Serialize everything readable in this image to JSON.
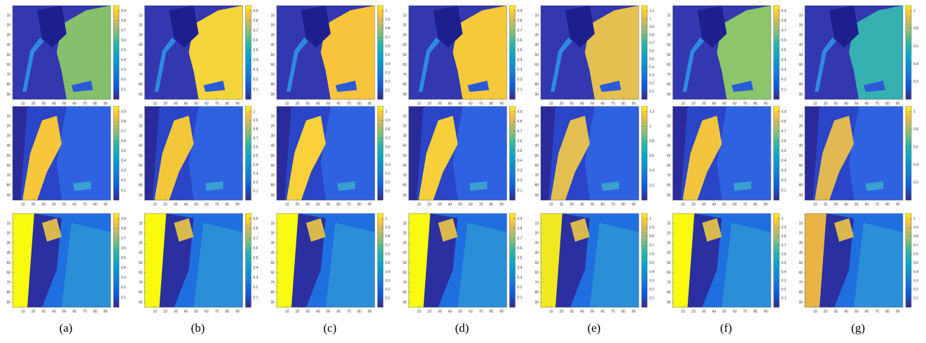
{
  "panel_labels": [
    "(a)",
    "(b)",
    "(c)",
    "(d)",
    "(e)",
    "(f)",
    "(g)"
  ],
  "axis_ticks": {
    "x": [
      10,
      20,
      30,
      40,
      50,
      60,
      70,
      80,
      90
    ],
    "y": [
      10,
      20,
      30,
      40,
      50,
      60,
      70,
      80,
      90
    ]
  },
  "colorbar_ticks": [
    [
      [
        0.1,
        0.2,
        0.3,
        0.4,
        0.5,
        0.6,
        0.7,
        0.8,
        0.9
      ],
      [
        0.1,
        0.2,
        0.3,
        0.4,
        0.5,
        0.6,
        0.7,
        0.8,
        0.9
      ],
      [
        0.1,
        0.2,
        0.3,
        0.4,
        0.5,
        0.6,
        0.7,
        0.8,
        0.9,
        1
      ],
      [
        0.1,
        0.2,
        0.3,
        0.4,
        0.5,
        0.6,
        0.7,
        0.8,
        0.9
      ],
      [
        0.1,
        0.2,
        0.3,
        0.4,
        0.5,
        0.6,
        0.7,
        0.8,
        0.9,
        1,
        1.1
      ],
      [
        0.1,
        0.2,
        0.3,
        0.4,
        0.5,
        0.6,
        0.7,
        0.8,
        0.9
      ],
      [
        0.2,
        0.4,
        0.6,
        0.8,
        1
      ]
    ],
    [
      [
        0.1,
        0.2,
        0.3,
        0.4,
        0.5,
        0.6,
        0.7,
        0.8,
        0.9
      ],
      [
        0.1,
        0.2,
        0.3,
        0.4,
        0.5,
        0.6,
        0.7,
        0.8,
        0.9,
        1
      ],
      [
        0.1,
        0.2,
        0.3,
        0.4,
        0.5,
        0.6,
        0.7,
        0.8,
        0.9,
        1
      ],
      [
        0.1,
        0.2,
        0.3,
        0.4,
        0.5,
        0.6,
        0.7,
        0.8,
        0.9
      ],
      [
        0.2,
        0.4,
        0.6,
        0.8,
        1,
        1.2
      ],
      [
        0.1,
        0.2,
        0.3,
        0.4,
        0.5,
        0.6,
        0.7,
        0.8,
        0.9
      ],
      [
        0.2,
        0.4,
        0.6,
        0.8,
        1
      ]
    ],
    [
      [
        0.1,
        0.2,
        0.3,
        0.4,
        0.5,
        0.6,
        0.7,
        0.8,
        0.9
      ],
      [
        0.1,
        0.2,
        0.3,
        0.4,
        0.5,
        0.6,
        0.7,
        0.8,
        0.9
      ],
      [
        0.1,
        0.2,
        0.3,
        0.4,
        0.5,
        0.6,
        0.7,
        0.8,
        0.9,
        1
      ],
      [
        0.1,
        0.2,
        0.3,
        0.4,
        0.5,
        0.6,
        0.7,
        0.8,
        0.9
      ],
      [
        0.1,
        0.2,
        0.3,
        0.4,
        0.5,
        0.6,
        0.7,
        0.8,
        0.9,
        1
      ],
      [
        0.1,
        0.2,
        0.3,
        0.4,
        0.5,
        0.6,
        0.7,
        0.8,
        0.9,
        1
      ],
      [
        0.1,
        0.2,
        0.3,
        0.4,
        0.5,
        0.6,
        0.7,
        0.8,
        0.9,
        1
      ]
    ]
  ]
}
